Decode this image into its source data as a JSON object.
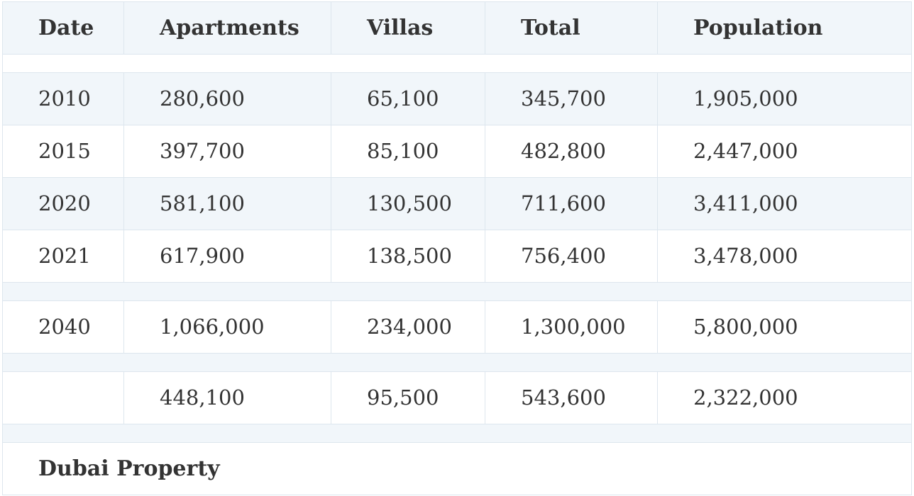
{
  "table": {
    "headers": [
      "Date",
      "Apartments",
      "Villas",
      "Total",
      "Population"
    ],
    "rows": [
      {
        "date": "2010",
        "apartments": "280,600",
        "villas": "65,100",
        "total": "345,700",
        "population": "1,905,000"
      },
      {
        "date": "2015",
        "apartments": "397,700",
        "villas": "85,100",
        "total": "482,800",
        "population": "2,447,000"
      },
      {
        "date": "2020",
        "apartments": "581,100",
        "villas": "130,500",
        "total": "711,600",
        "population": "3,411,000"
      },
      {
        "date": "2021",
        "apartments": "617,900",
        "villas": "138,500",
        "total": "756,400",
        "population": "3,478,000"
      },
      {
        "date": "2040",
        "apartments": "1,066,000",
        "villas": "234,000",
        "total": "1,300,000",
        "population": "5,800,000"
      },
      {
        "date": "",
        "apartments": "448,100",
        "villas": "95,500",
        "total": "543,600",
        "population": "2,322,000"
      }
    ],
    "footer": "Dubai Property"
  },
  "colors": {
    "stripe": "#f1f6fa",
    "border": "#dde6ee",
    "text": "#333333"
  }
}
